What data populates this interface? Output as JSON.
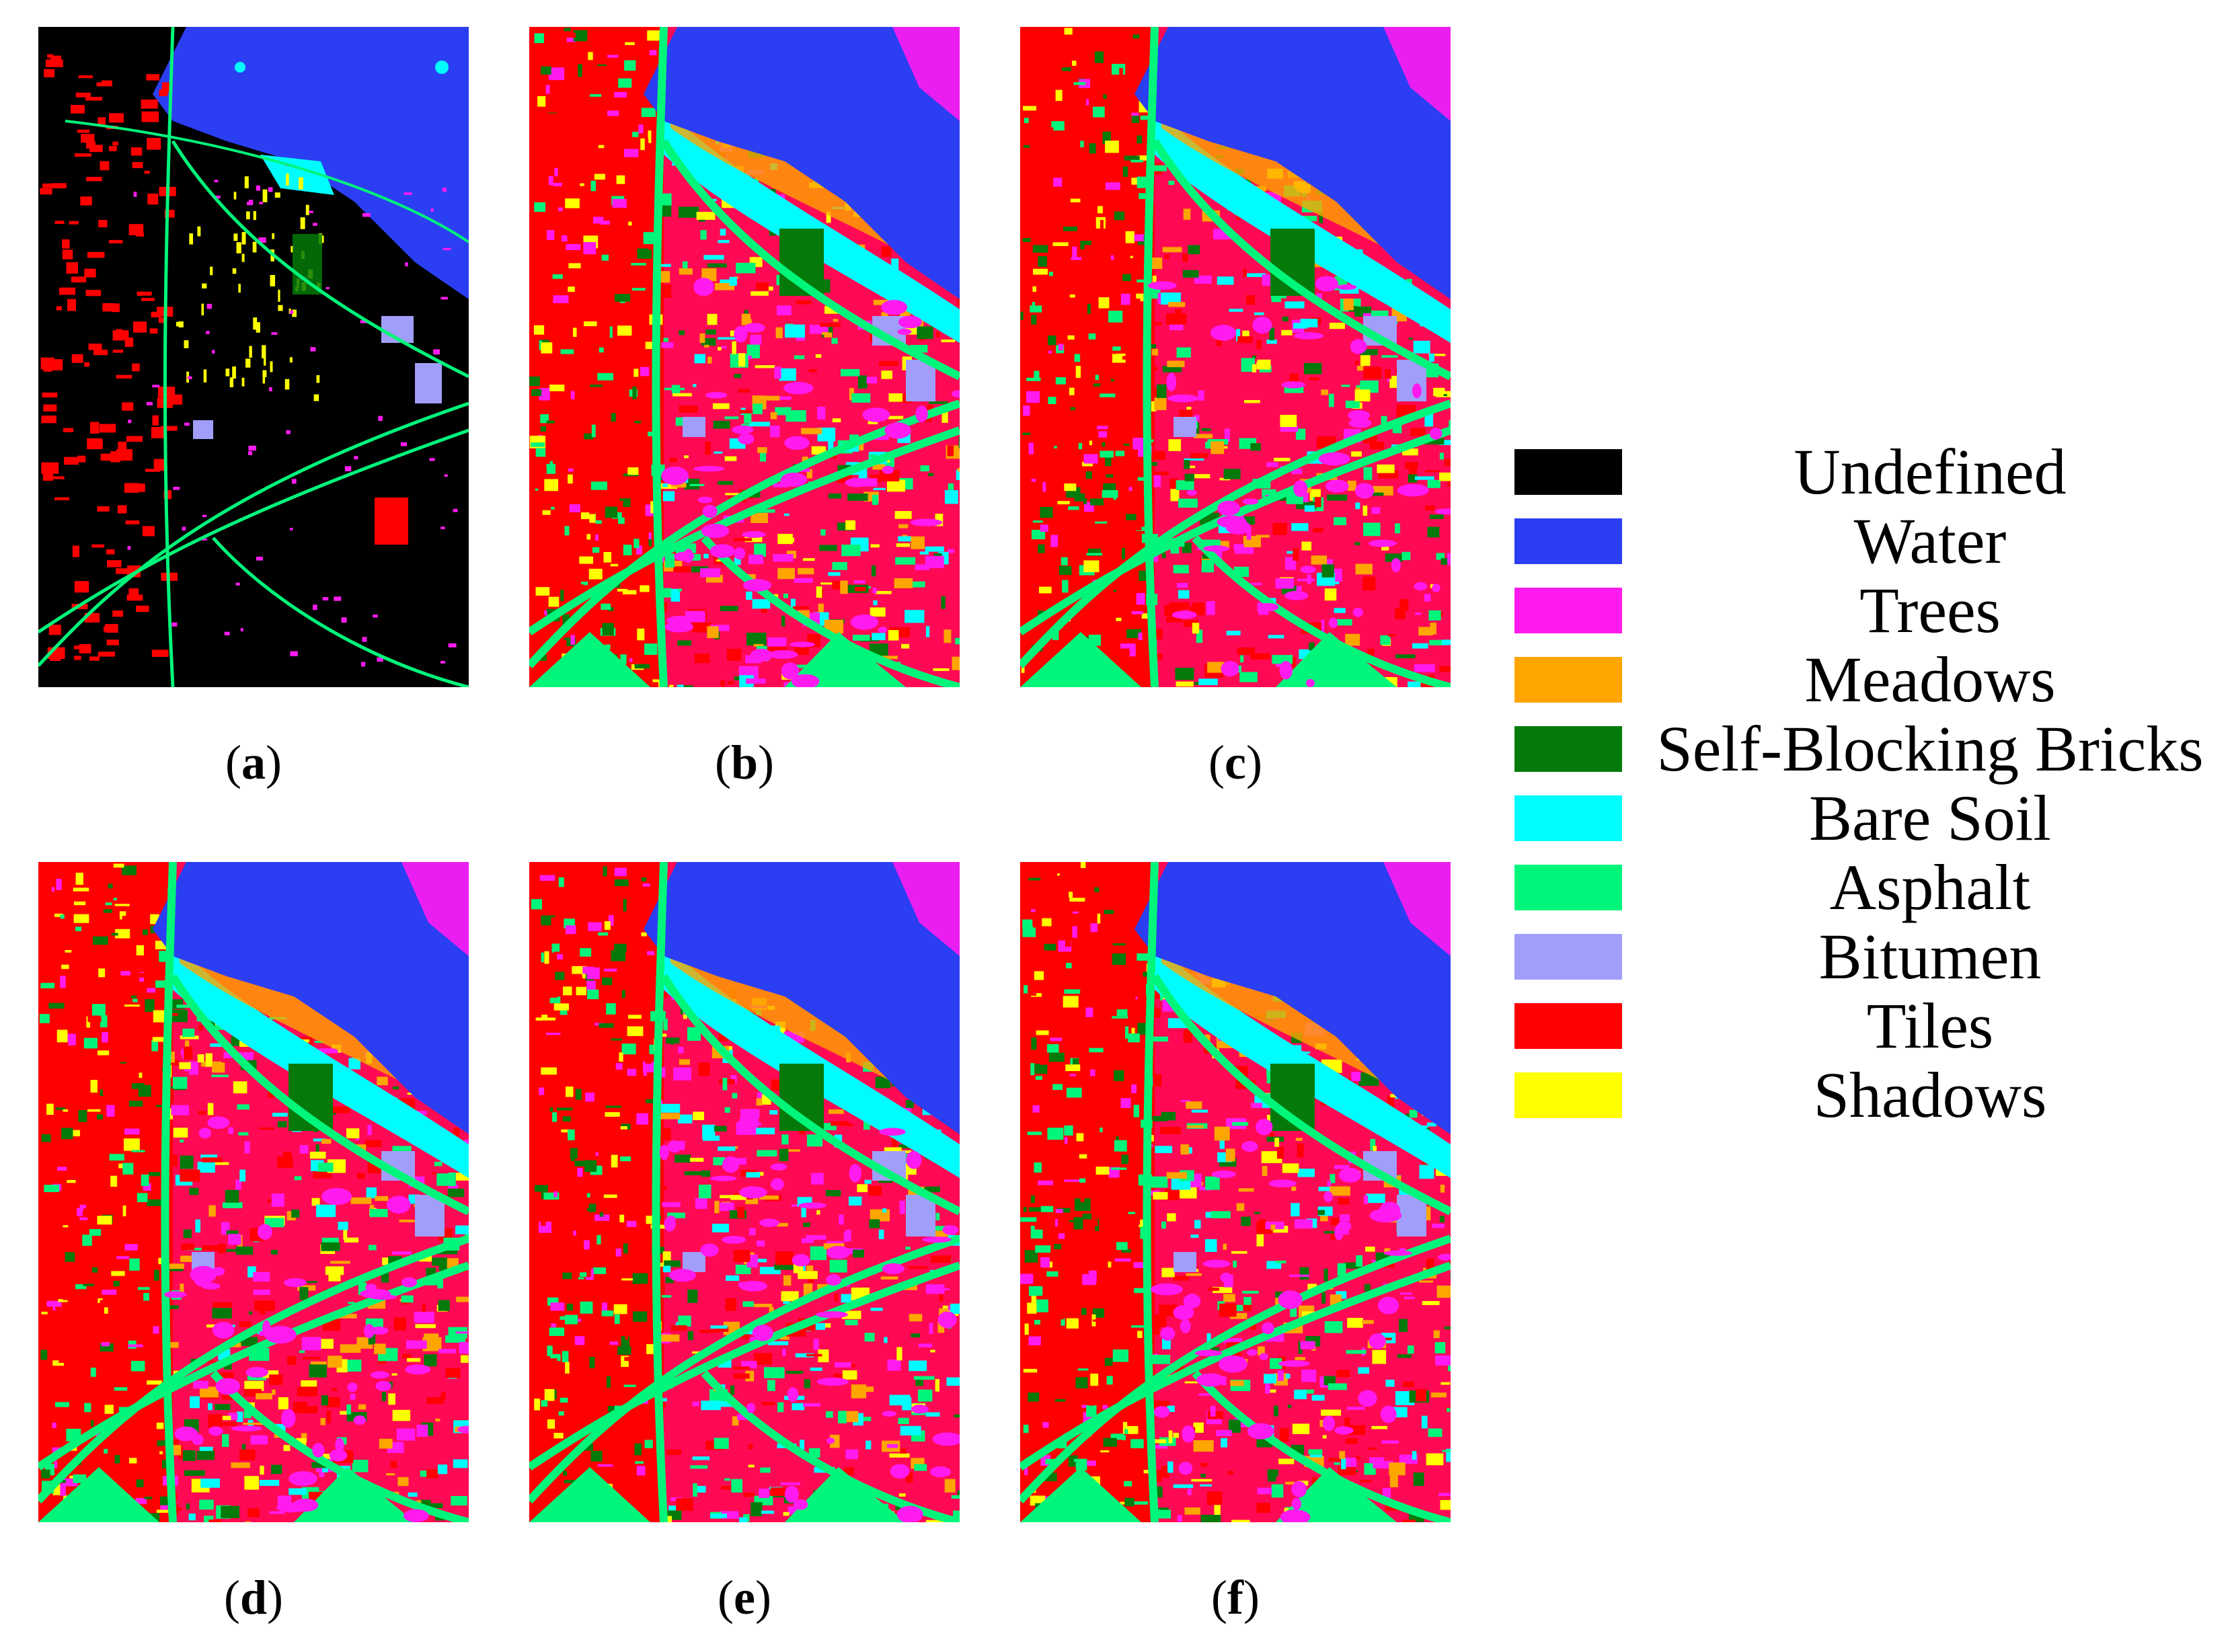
{
  "panels": [
    {
      "id": "a",
      "caption": "a",
      "type": "ground-truth",
      "seed": 11
    },
    {
      "id": "b",
      "caption": "b",
      "type": "classification",
      "seed": 23
    },
    {
      "id": "c",
      "caption": "c",
      "type": "classification",
      "seed": 37
    },
    {
      "id": "d",
      "caption": "d",
      "type": "classification",
      "seed": 41
    },
    {
      "id": "e",
      "caption": "e",
      "type": "classification",
      "seed": 53
    },
    {
      "id": "f",
      "caption": "f",
      "type": "classification",
      "seed": 67
    }
  ],
  "legend": [
    {
      "label": "Undefined",
      "color": "#000000"
    },
    {
      "label": "Water",
      "color": "#2b3ef2"
    },
    {
      "label": "Trees",
      "color": "#ff1bf0"
    },
    {
      "label": "Meadows",
      "color": "#ffa500"
    },
    {
      "label": "Self-Blocking Bricks",
      "color": "#057a0b"
    },
    {
      "label": "Bare Soil",
      "color": "#00fdfd"
    },
    {
      "label": "Asphalt",
      "color": "#00f67a"
    },
    {
      "label": "Bitumen",
      "color": "#a09ef8"
    },
    {
      "label": "Tiles",
      "color": "#ff0000"
    },
    {
      "label": "Shadows",
      "color": "#ffff00"
    }
  ]
}
